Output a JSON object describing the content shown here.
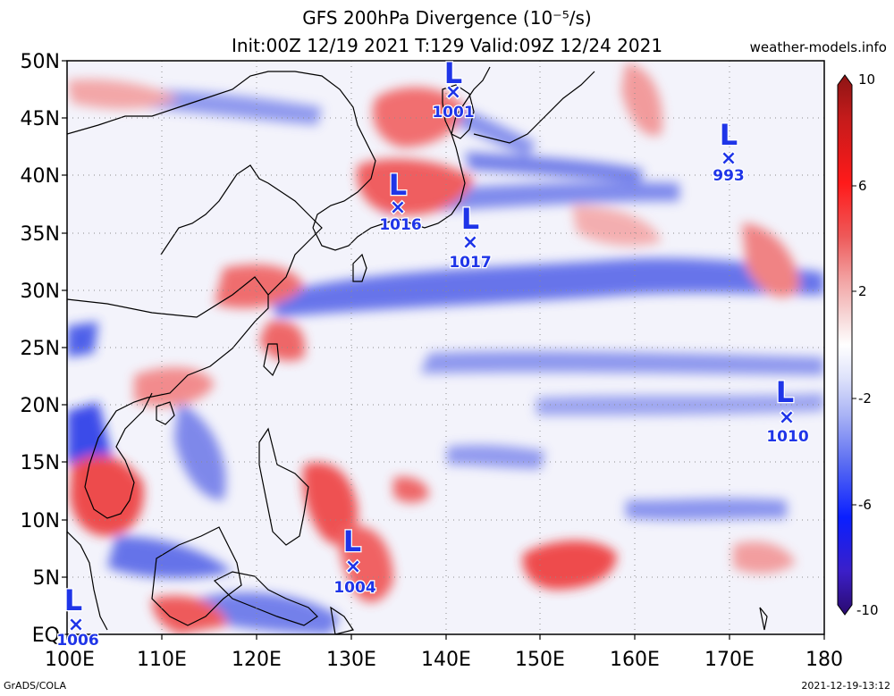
{
  "title": {
    "line1": "GFS 200hPa Divergence (10⁻⁵/s)",
    "line2": "Init:00Z 12/19 2021 T:129 Valid:09Z 12/24 2021"
  },
  "site": "weather-models.info",
  "map": {
    "lon_range": [
      100,
      180
    ],
    "lat_range": [
      0,
      50
    ],
    "lat_labels": [
      "50N",
      "45N",
      "40N",
      "35N",
      "30N",
      "25N",
      "20N",
      "15N",
      "10N",
      "5N",
      "EQ"
    ],
    "lon_labels": [
      "100E",
      "110E",
      "120E",
      "130E",
      "140E",
      "150E",
      "160E",
      "170E",
      "180"
    ]
  },
  "colorbar": {
    "labels": [
      "10",
      "6",
      "2",
      "-2",
      "-6",
      "-10"
    ],
    "colors": [
      "#2a0a6e",
      "#3b1fc8",
      "#0a1fff",
      "#5a6cf2",
      "#a9b3f5",
      "#dfe3fb",
      "#ffffff",
      "#f7d9d9",
      "#f2a3a3",
      "#ee5a5a",
      "#ff1a1a",
      "#c41b1b",
      "#8c1414"
    ]
  },
  "lows": [
    {
      "label": "L",
      "pressure": "1001"
    },
    {
      "label": "L",
      "pressure": "993"
    },
    {
      "label": "L",
      "pressure": "1016"
    },
    {
      "label": "L",
      "pressure": "1017"
    },
    {
      "label": "L",
      "pressure": "1010"
    },
    {
      "label": "L",
      "pressure": "1004"
    },
    {
      "label": "L",
      "pressure": "1006"
    }
  ],
  "footer": {
    "left": "GrADS/COLA",
    "right": "2021-12-19-13:12"
  }
}
